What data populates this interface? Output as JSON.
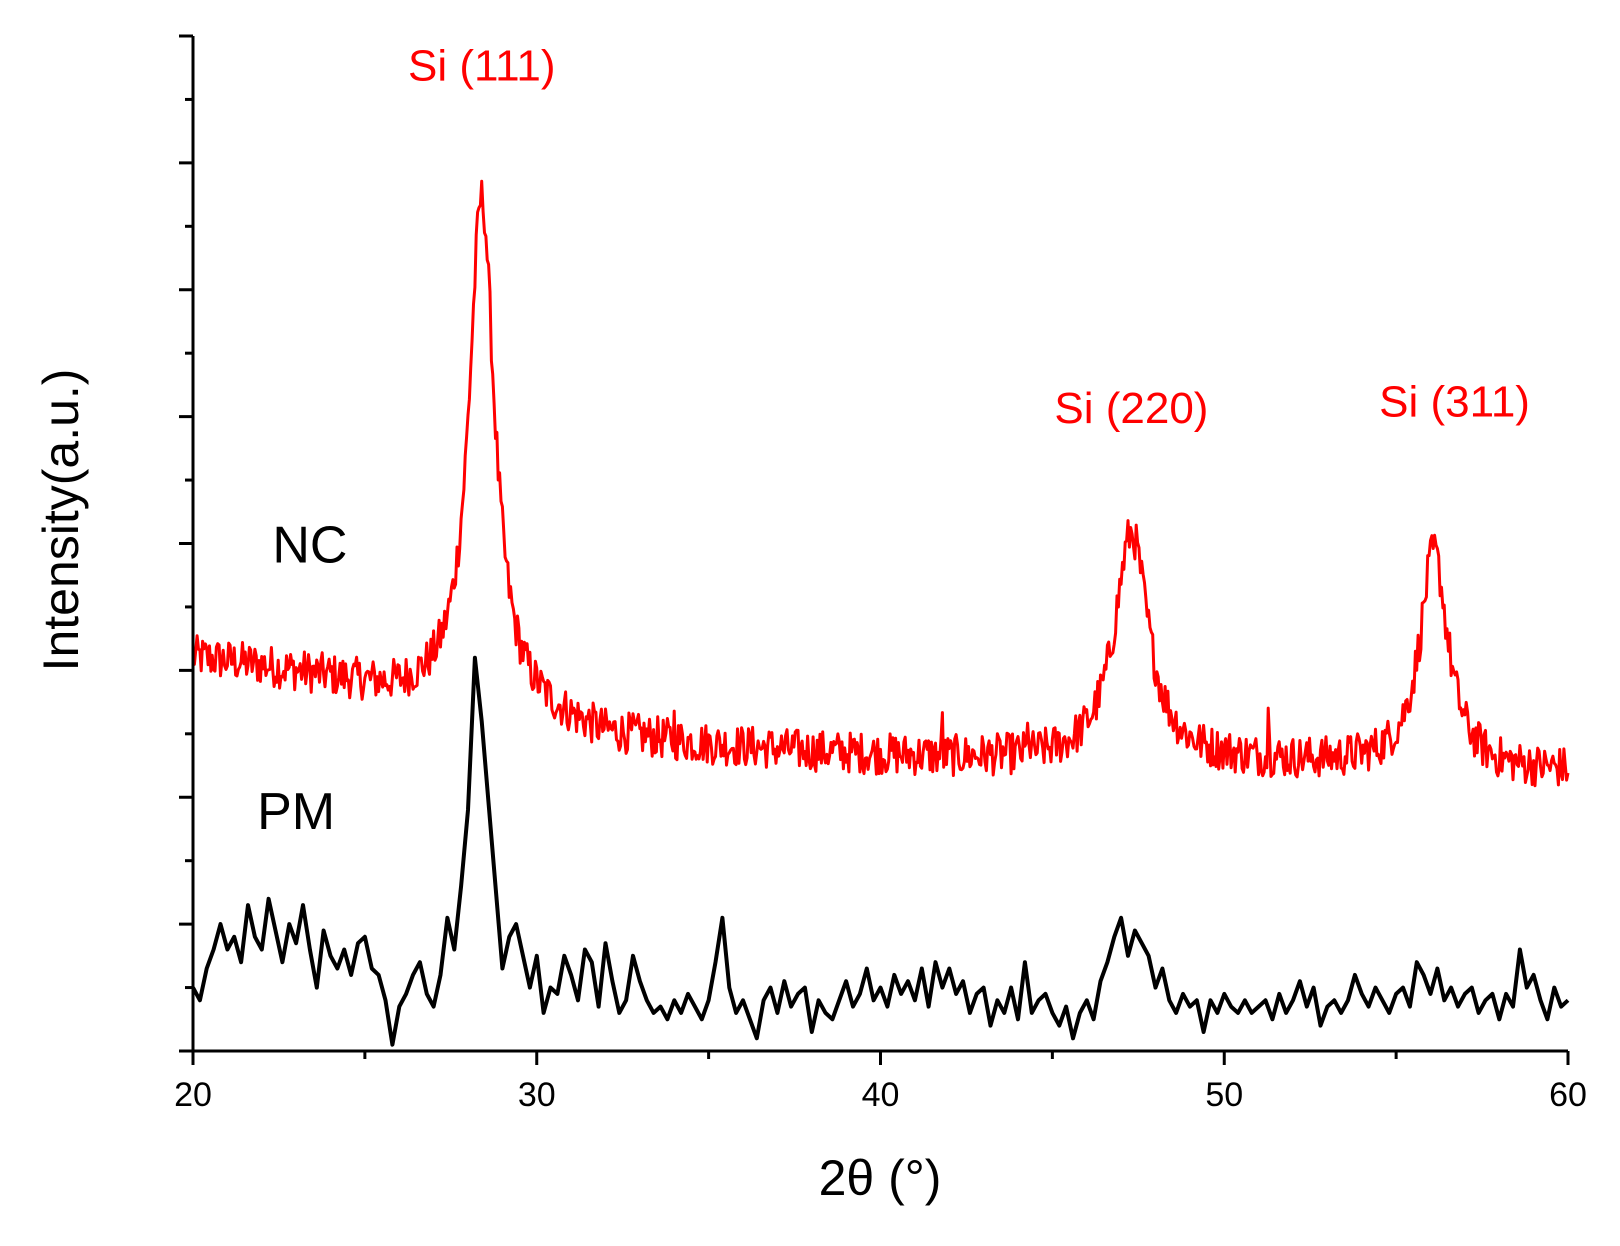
{
  "chart_data": {
    "type": "line",
    "title": "",
    "xlabel": "2θ (°)",
    "ylabel": "Intensity(a.u.)",
    "xlim": [
      20,
      60
    ],
    "ylim": [
      0,
      16
    ],
    "x_ticks": [
      20,
      30,
      40,
      50,
      60
    ],
    "x_tick_labels": [
      "20",
      "30",
      "40",
      "50",
      "60"
    ],
    "x_minor_step": 5,
    "y_major_step": 2,
    "y_minor_step": 1,
    "y_tick_labels_shown": false,
    "grid": false,
    "legend": "none",
    "series": [
      {
        "name": "NC",
        "label": "NC",
        "color": "#ff0000",
        "label_at": [
          23.4,
          7.7
        ],
        "profile": {
          "baseline_knots": [
            [
              20,
              6.2
            ],
            [
              22,
              6.05
            ],
            [
              24,
              5.85
            ],
            [
              26,
              5.6
            ],
            [
              28,
              5.5
            ],
            [
              30,
              5.25
            ],
            [
              32,
              4.95
            ],
            [
              35,
              4.8
            ],
            [
              38,
              4.7
            ],
            [
              42,
              4.6
            ],
            [
              46,
              4.55
            ],
            [
              50,
              4.55
            ],
            [
              54,
              4.5
            ],
            [
              56,
              4.45
            ],
            [
              58,
              4.4
            ],
            [
              60,
              4.4
            ]
          ],
          "peaks": [
            {
              "center": 28.4,
              "amplitude": 8.0,
              "width": 0.45
            },
            {
              "center": 47.3,
              "amplitude": 3.6,
              "width": 0.6
            },
            {
              "center": 56.1,
              "amplitude": 3.4,
              "width": 0.5
            }
          ],
          "spikes": [
            [
              41.8,
              0.6
            ],
            [
              51.3,
              0.6
            ],
            [
              34.0,
              0.3
            ],
            [
              44.3,
              0.3
            ]
          ],
          "noise": 0.33,
          "step": 0.04
        }
      },
      {
        "name": "PM",
        "label": "PM",
        "color": "#000000",
        "label_at": [
          23.0,
          3.5
        ],
        "points": [
          [
            20.0,
            1.0
          ],
          [
            20.2,
            0.8
          ],
          [
            20.4,
            1.3
          ],
          [
            20.6,
            1.6
          ],
          [
            20.8,
            2.0
          ],
          [
            21.0,
            1.6
          ],
          [
            21.2,
            1.8
          ],
          [
            21.4,
            1.4
          ],
          [
            21.6,
            2.3
          ],
          [
            21.8,
            1.8
          ],
          [
            22.0,
            1.6
          ],
          [
            22.2,
            2.4
          ],
          [
            22.4,
            1.9
          ],
          [
            22.6,
            1.4
          ],
          [
            22.8,
            2.0
          ],
          [
            23.0,
            1.7
          ],
          [
            23.2,
            2.3
          ],
          [
            23.4,
            1.6
          ],
          [
            23.6,
            1.0
          ],
          [
            23.8,
            1.9
          ],
          [
            24.0,
            1.5
          ],
          [
            24.2,
            1.3
          ],
          [
            24.4,
            1.6
          ],
          [
            24.6,
            1.2
          ],
          [
            24.8,
            1.7
          ],
          [
            25.0,
            1.8
          ],
          [
            25.2,
            1.3
          ],
          [
            25.4,
            1.2
          ],
          [
            25.6,
            0.8
          ],
          [
            25.8,
            0.1
          ],
          [
            26.0,
            0.7
          ],
          [
            26.2,
            0.9
          ],
          [
            26.4,
            1.2
          ],
          [
            26.6,
            1.4
          ],
          [
            26.8,
            0.9
          ],
          [
            27.0,
            0.7
          ],
          [
            27.2,
            1.2
          ],
          [
            27.4,
            2.1
          ],
          [
            27.6,
            1.6
          ],
          [
            27.8,
            2.6
          ],
          [
            28.0,
            3.8
          ],
          [
            28.2,
            6.2
          ],
          [
            28.4,
            5.2
          ],
          [
            28.6,
            3.9
          ],
          [
            28.8,
            2.6
          ],
          [
            29.0,
            1.3
          ],
          [
            29.2,
            1.8
          ],
          [
            29.4,
            2.0
          ],
          [
            29.6,
            1.5
          ],
          [
            29.8,
            1.0
          ],
          [
            30.0,
            1.5
          ],
          [
            30.2,
            0.6
          ],
          [
            30.4,
            1.0
          ],
          [
            30.6,
            0.9
          ],
          [
            30.8,
            1.5
          ],
          [
            31.0,
            1.2
          ],
          [
            31.2,
            0.8
          ],
          [
            31.4,
            1.6
          ],
          [
            31.6,
            1.4
          ],
          [
            31.8,
            0.7
          ],
          [
            32.0,
            1.7
          ],
          [
            32.2,
            1.1
          ],
          [
            32.4,
            0.6
          ],
          [
            32.6,
            0.8
          ],
          [
            32.8,
            1.5
          ],
          [
            33.0,
            1.1
          ],
          [
            33.2,
            0.8
          ],
          [
            33.4,
            0.6
          ],
          [
            33.6,
            0.7
          ],
          [
            33.8,
            0.5
          ],
          [
            34.0,
            0.8
          ],
          [
            34.2,
            0.6
          ],
          [
            34.4,
            0.9
          ],
          [
            34.6,
            0.7
          ],
          [
            34.8,
            0.5
          ],
          [
            35.0,
            0.8
          ],
          [
            35.2,
            1.4
          ],
          [
            35.4,
            2.1
          ],
          [
            35.6,
            1.0
          ],
          [
            35.8,
            0.6
          ],
          [
            36.0,
            0.8
          ],
          [
            36.2,
            0.5
          ],
          [
            36.4,
            0.2
          ],
          [
            36.6,
            0.8
          ],
          [
            36.8,
            1.0
          ],
          [
            37.0,
            0.6
          ],
          [
            37.2,
            1.1
          ],
          [
            37.4,
            0.7
          ],
          [
            37.6,
            0.9
          ],
          [
            37.8,
            1.0
          ],
          [
            38.0,
            0.3
          ],
          [
            38.2,
            0.8
          ],
          [
            38.4,
            0.6
          ],
          [
            38.6,
            0.5
          ],
          [
            38.8,
            0.8
          ],
          [
            39.0,
            1.1
          ],
          [
            39.2,
            0.7
          ],
          [
            39.4,
            0.9
          ],
          [
            39.6,
            1.3
          ],
          [
            39.8,
            0.8
          ],
          [
            40.0,
            1.0
          ],
          [
            40.2,
            0.7
          ],
          [
            40.4,
            1.2
          ],
          [
            40.6,
            0.9
          ],
          [
            40.8,
            1.1
          ],
          [
            41.0,
            0.8
          ],
          [
            41.2,
            1.3
          ],
          [
            41.4,
            0.7
          ],
          [
            41.6,
            1.4
          ],
          [
            41.8,
            1.0
          ],
          [
            42.0,
            1.3
          ],
          [
            42.2,
            0.9
          ],
          [
            42.4,
            1.1
          ],
          [
            42.6,
            0.6
          ],
          [
            42.8,
            0.9
          ],
          [
            43.0,
            1.0
          ],
          [
            43.2,
            0.4
          ],
          [
            43.4,
            0.8
          ],
          [
            43.6,
            0.6
          ],
          [
            43.8,
            1.0
          ],
          [
            44.0,
            0.5
          ],
          [
            44.2,
            1.4
          ],
          [
            44.4,
            0.6
          ],
          [
            44.6,
            0.8
          ],
          [
            44.8,
            0.9
          ],
          [
            45.0,
            0.6
          ],
          [
            45.2,
            0.4
          ],
          [
            45.4,
            0.7
          ],
          [
            45.6,
            0.2
          ],
          [
            45.8,
            0.6
          ],
          [
            46.0,
            0.8
          ],
          [
            46.2,
            0.5
          ],
          [
            46.4,
            1.1
          ],
          [
            46.6,
            1.4
          ],
          [
            46.8,
            1.8
          ],
          [
            47.0,
            2.1
          ],
          [
            47.2,
            1.5
          ],
          [
            47.4,
            1.9
          ],
          [
            47.6,
            1.7
          ],
          [
            47.8,
            1.5
          ],
          [
            48.0,
            1.0
          ],
          [
            48.2,
            1.3
          ],
          [
            48.4,
            0.8
          ],
          [
            48.6,
            0.6
          ],
          [
            48.8,
            0.9
          ],
          [
            49.0,
            0.7
          ],
          [
            49.2,
            0.8
          ],
          [
            49.4,
            0.3
          ],
          [
            49.6,
            0.8
          ],
          [
            49.8,
            0.6
          ],
          [
            50.0,
            0.9
          ],
          [
            50.2,
            0.7
          ],
          [
            50.4,
            0.6
          ],
          [
            50.6,
            0.8
          ],
          [
            50.8,
            0.6
          ],
          [
            51.0,
            0.7
          ],
          [
            51.2,
            0.8
          ],
          [
            51.4,
            0.5
          ],
          [
            51.6,
            0.9
          ],
          [
            51.8,
            0.6
          ],
          [
            52.0,
            0.8
          ],
          [
            52.2,
            1.1
          ],
          [
            52.4,
            0.7
          ],
          [
            52.6,
            1.0
          ],
          [
            52.8,
            0.4
          ],
          [
            53.0,
            0.7
          ],
          [
            53.2,
            0.8
          ],
          [
            53.4,
            0.6
          ],
          [
            53.6,
            0.8
          ],
          [
            53.8,
            1.2
          ],
          [
            54.0,
            0.9
          ],
          [
            54.2,
            0.7
          ],
          [
            54.4,
            1.0
          ],
          [
            54.6,
            0.8
          ],
          [
            54.8,
            0.6
          ],
          [
            55.0,
            0.9
          ],
          [
            55.2,
            1.0
          ],
          [
            55.4,
            0.7
          ],
          [
            55.6,
            1.4
          ],
          [
            55.8,
            1.2
          ],
          [
            56.0,
            0.9
          ],
          [
            56.2,
            1.3
          ],
          [
            56.4,
            0.8
          ],
          [
            56.6,
            1.0
          ],
          [
            56.8,
            0.7
          ],
          [
            57.0,
            0.9
          ],
          [
            57.2,
            1.0
          ],
          [
            57.4,
            0.6
          ],
          [
            57.6,
            0.8
          ],
          [
            57.8,
            0.9
          ],
          [
            58.0,
            0.5
          ],
          [
            58.2,
            0.9
          ],
          [
            58.4,
            0.7
          ],
          [
            58.6,
            1.6
          ],
          [
            58.8,
            1.0
          ],
          [
            59.0,
            1.2
          ],
          [
            59.2,
            0.8
          ],
          [
            59.4,
            0.5
          ],
          [
            59.6,
            1.0
          ],
          [
            59.8,
            0.7
          ],
          [
            60.0,
            0.8
          ]
        ]
      }
    ],
    "annotations": [
      {
        "text": "Si (111)",
        "x": 28.4,
        "y": 15.3,
        "color": "#ff0000"
      },
      {
        "text": "Si (220)",
        "x": 47.3,
        "y": 9.9,
        "color": "#ff0000"
      },
      {
        "text": "Si (311)",
        "x": 56.7,
        "y": 10.0,
        "color": "#ff0000"
      }
    ]
  }
}
